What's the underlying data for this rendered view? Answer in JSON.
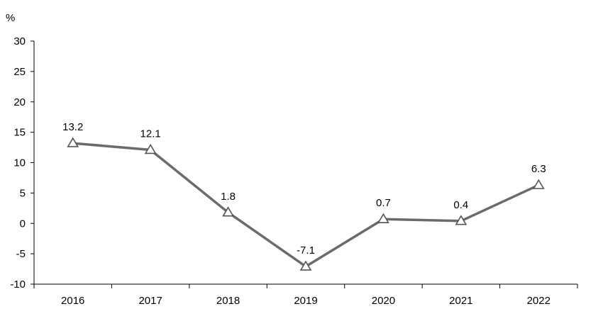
{
  "chart_data": {
    "type": "line",
    "title": "",
    "xlabel": "",
    "ylabel": "%",
    "categories": [
      "2016",
      "2017",
      "2018",
      "2019",
      "2020",
      "2021",
      "2022"
    ],
    "series": [
      {
        "values": [
          13.2,
          12.1,
          1.8,
          -7.1,
          0.7,
          0.4,
          6.3
        ],
        "marker": "triangle-open"
      }
    ],
    "data_labels": [
      "13.2",
      "12.1",
      "1.8",
      "-7.1",
      "0.7",
      "0.4",
      "6.3"
    ],
    "ylim": [
      -10,
      30
    ],
    "yticks": [
      30,
      25,
      20,
      15,
      10,
      5,
      0,
      -5,
      -10
    ],
    "grid": false,
    "legend": "none",
    "colors": {
      "line": "#6b6b6b",
      "marker_fill": "#ffffff",
      "marker_stroke": "#555555",
      "axis": "#000000"
    }
  }
}
